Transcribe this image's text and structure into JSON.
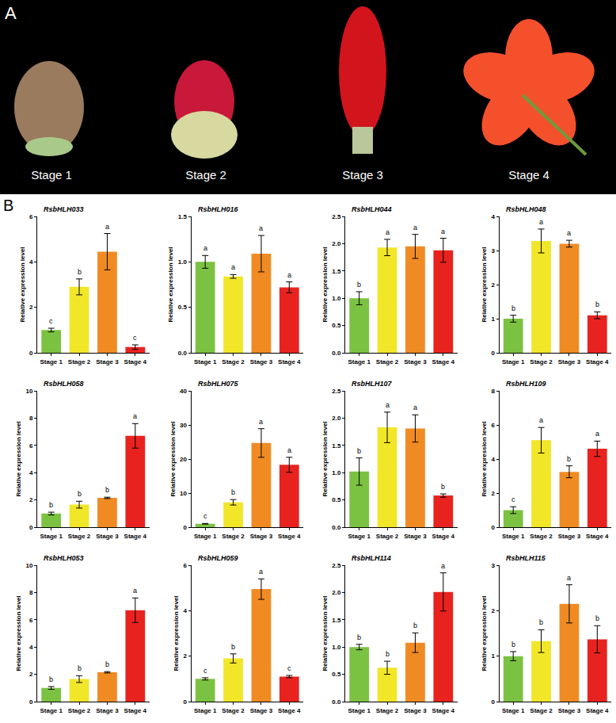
{
  "panel_a": {
    "letter": "A",
    "labels": [
      "Stage 1",
      "Stage 2",
      "Stage 3",
      "Stage 4"
    ]
  },
  "panel_b": {
    "letter": "B"
  },
  "chart_data": [
    {
      "type": "bar",
      "title": "RsbHLH033",
      "y_label": "Relative expression level",
      "categories": [
        "Stage 1",
        "Stage 2",
        "Stage 3",
        "Stage 4"
      ],
      "values": [
        1.0,
        2.9,
        4.45,
        0.25
      ],
      "errors": [
        0.08,
        0.35,
        0.8,
        0.1
      ],
      "annotations": [
        "c",
        "b",
        "a",
        "c"
      ],
      "colors": [
        "#7cc242",
        "#f2e629",
        "#f08b23",
        "#e8231f"
      ],
      "ylim": [
        0,
        6
      ],
      "yticks": [
        0,
        2,
        4,
        6
      ]
    },
    {
      "type": "bar",
      "title": "RsbHLH016",
      "y_label": "Relative expression level",
      "categories": [
        "Stage 1",
        "Stage 2",
        "Stage 3",
        "Stage 4"
      ],
      "values": [
        1.0,
        0.84,
        1.09,
        0.72
      ],
      "errors": [
        0.07,
        0.02,
        0.2,
        0.06
      ],
      "annotations": [
        "a",
        "a",
        "a",
        "a"
      ],
      "colors": [
        "#7cc242",
        "#f2e629",
        "#f08b23",
        "#e8231f"
      ],
      "ylim": [
        0,
        1.5
      ],
      "yticks": [
        {
          "value": 0,
          "label": "0.0"
        },
        0.5,
        {
          "value": 1,
          "label": "1.0"
        },
        1.5
      ]
    },
    {
      "type": "bar",
      "title": "RsbHLH044",
      "y_label": "Relative expression level",
      "categories": [
        "Stage 1",
        "Stage 2",
        "Stage 3",
        "Stage 4"
      ],
      "values": [
        1.0,
        1.93,
        1.95,
        1.88
      ],
      "errors": [
        0.12,
        0.15,
        0.22,
        0.22
      ],
      "annotations": [
        "b",
        "a",
        "a",
        "a"
      ],
      "colors": [
        "#7cc242",
        "#f2e629",
        "#f08b23",
        "#e8231f"
      ],
      "ylim": [
        0,
        2.5
      ],
      "yticks": [
        {
          "value": 0,
          "label": "0.0"
        },
        0.5,
        {
          "value": 1,
          "label": "1.0"
        },
        1.5,
        {
          "value": 2,
          "label": "2.0"
        },
        2.5
      ]
    },
    {
      "type": "bar",
      "title": "RsbHLH048",
      "y_label": "Relative expression level",
      "categories": [
        "Stage 1",
        "Stage 2",
        "Stage 3",
        "Stage 4"
      ],
      "values": [
        1.0,
        3.28,
        3.2,
        1.1
      ],
      "errors": [
        0.1,
        0.35,
        0.1,
        0.1
      ],
      "annotations": [
        "b",
        "a",
        "a",
        "b"
      ],
      "colors": [
        "#7cc242",
        "#f2e629",
        "#f08b23",
        "#e8231f"
      ],
      "ylim": [
        0,
        4
      ],
      "yticks": [
        0,
        1,
        2,
        3,
        4
      ]
    },
    {
      "type": "bar",
      "title": "RsbHLH058",
      "y_label": "Relative expression level",
      "categories": [
        "Stage 1",
        "Stage 2",
        "Stage 3",
        "Stage 4"
      ],
      "values": [
        1.0,
        1.65,
        2.15,
        6.7
      ],
      "errors": [
        0.1,
        0.25,
        0.05,
        0.9
      ],
      "annotations": [
        "b",
        "b",
        "b",
        "a"
      ],
      "colors": [
        "#7cc242",
        "#f2e629",
        "#f08b23",
        "#e8231f"
      ],
      "ylim": [
        0,
        10
      ],
      "yticks": [
        0,
        2,
        4,
        6,
        8,
        10
      ]
    },
    {
      "type": "bar",
      "title": "RsbHLH075",
      "y_label": "Relative expression level",
      "categories": [
        "Stage 1",
        "Stage 2",
        "Stage 3",
        "Stage 4"
      ],
      "values": [
        1.0,
        7.3,
        24.7,
        18.3
      ],
      "errors": [
        0.1,
        0.8,
        4.2,
        2.2
      ],
      "annotations": [
        "c",
        "b",
        "a",
        "a"
      ],
      "colors": [
        "#7cc242",
        "#f2e629",
        "#f08b23",
        "#e8231f"
      ],
      "ylim": [
        0,
        40
      ],
      "yticks": [
        0,
        10,
        20,
        30,
        40
      ]
    },
    {
      "type": "bar",
      "title": "RsbHLH107",
      "y_label": "Relative expression level",
      "categories": [
        "Stage 1",
        "Stage 2",
        "Stage 3",
        "Stage 4"
      ],
      "values": [
        1.02,
        1.83,
        1.81,
        0.58
      ],
      "errors": [
        0.25,
        0.28,
        0.25,
        0.03
      ],
      "annotations": [
        "b",
        "a",
        "a",
        "b"
      ],
      "colors": [
        "#7cc242",
        "#f2e629",
        "#f08b23",
        "#e8231f"
      ],
      "ylim": [
        0,
        2.5
      ],
      "yticks": [
        {
          "value": 0,
          "label": "0.0"
        },
        0.5,
        {
          "value": 1,
          "label": "1.0"
        },
        1.5,
        {
          "value": 2,
          "label": "2.0"
        },
        2.5
      ]
    },
    {
      "type": "bar",
      "title": "RsbHLH109",
      "y_label": "Relative expression level",
      "categories": [
        "Stage 1",
        "Stage 2",
        "Stage 3",
        "Stage 4"
      ],
      "values": [
        1.0,
        5.1,
        3.25,
        4.6
      ],
      "errors": [
        0.2,
        0.75,
        0.35,
        0.45
      ],
      "annotations": [
        "c",
        "a",
        "b",
        "a"
      ],
      "colors": [
        "#7cc242",
        "#f2e629",
        "#f08b23",
        "#e8231f"
      ],
      "ylim": [
        0,
        8
      ],
      "yticks": [
        0,
        2,
        4,
        6,
        8
      ]
    },
    {
      "type": "bar",
      "title": "RsbHLH053",
      "y_label": "Relative expression level",
      "categories": [
        "Stage 1",
        "Stage 2",
        "Stage 3",
        "Stage 4"
      ],
      "values": [
        1.0,
        1.65,
        2.15,
        6.7
      ],
      "errors": [
        0.1,
        0.25,
        0.05,
        0.9
      ],
      "annotations": [
        "b",
        "b",
        "b",
        "a"
      ],
      "colors": [
        "#7cc242",
        "#f2e629",
        "#f08b23",
        "#e8231f"
      ],
      "ylim": [
        0,
        10
      ],
      "yticks": [
        0,
        2,
        4,
        6,
        8,
        10
      ]
    },
    {
      "type": "bar",
      "title": "RsbHLH059",
      "y_label": "Relative expression level",
      "categories": [
        "Stage 1",
        "Stage 2",
        "Stage 3",
        "Stage 4"
      ],
      "values": [
        1.0,
        1.9,
        4.95,
        1.1
      ],
      "errors": [
        0.05,
        0.2,
        0.45,
        0.05
      ],
      "annotations": [
        "c",
        "b",
        "a",
        "c"
      ],
      "colors": [
        "#7cc242",
        "#f2e629",
        "#f08b23",
        "#e8231f"
      ],
      "ylim": [
        0,
        6
      ],
      "yticks": [
        0,
        2,
        4,
        6
      ]
    },
    {
      "type": "bar",
      "title": "RsbHLH114",
      "y_label": "Relative expression level",
      "categories": [
        "Stage 1",
        "Stage 2",
        "Stage 3",
        "Stage 4"
      ],
      "values": [
        1.0,
        0.62,
        1.08,
        2.01
      ],
      "errors": [
        0.05,
        0.12,
        0.18,
        0.35
      ],
      "annotations": [
        "b",
        "b",
        "b",
        "a"
      ],
      "colors": [
        "#7cc242",
        "#f2e629",
        "#f08b23",
        "#e8231f"
      ],
      "ylim": [
        0,
        2.5
      ],
      "yticks": [
        {
          "value": 0,
          "label": "0.0"
        },
        0.5,
        {
          "value": 1,
          "label": "1.0"
        },
        1.5,
        {
          "value": 2,
          "label": "2.0"
        },
        2.5
      ]
    },
    {
      "type": "bar",
      "title": "RsbHLH115",
      "y_label": "Relative expression level",
      "categories": [
        "Stage 1",
        "Stage 2",
        "Stage 3",
        "Stage 4"
      ],
      "values": [
        1.0,
        1.33,
        2.15,
        1.37
      ],
      "errors": [
        0.1,
        0.25,
        0.42,
        0.3
      ],
      "annotations": [
        "b",
        "b",
        "a",
        "b"
      ],
      "colors": [
        "#7cc242",
        "#f2e629",
        "#f08b23",
        "#e8231f"
      ],
      "ylim": [
        0,
        3
      ],
      "yticks": [
        0,
        1,
        2,
        3
      ]
    }
  ]
}
